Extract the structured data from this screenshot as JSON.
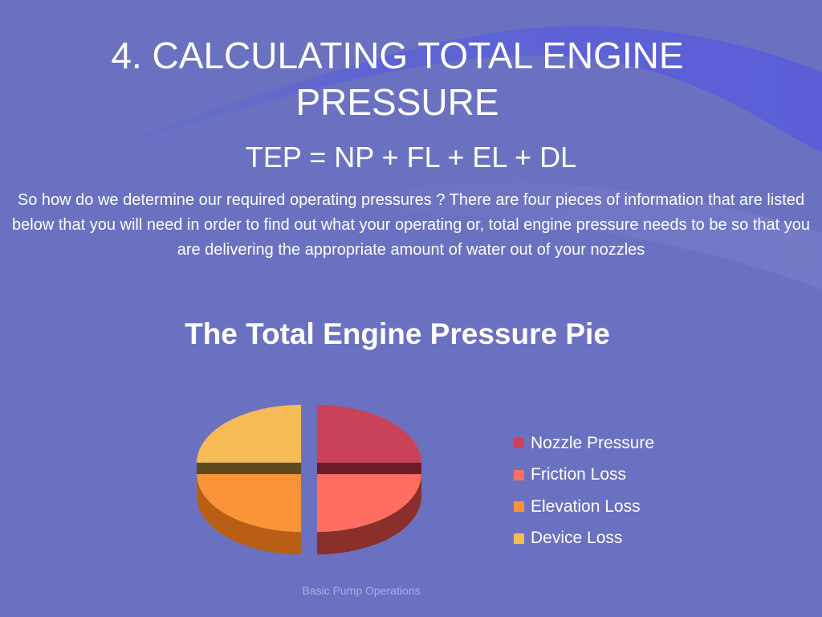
{
  "slide": {
    "title": "4. CALCULATING TOTAL ENGINE PRESSURE",
    "formula": "TEP = NP + FL + EL + DL",
    "intro": "So how do we determine our required operating pressures ? There are four pieces of information that are listed below that you will need in order to find out what your operating or, total engine pressure needs to be so that you are delivering the appropriate amount of water out of your nozzles",
    "footer": "Basic Pump Operations"
  },
  "colors": {
    "background": "#6a71c0",
    "wave": "#5a5fd8"
  },
  "chart_data": {
    "type": "pie",
    "title": "The Total Engine Pressure Pie",
    "legend_position": "right",
    "series": [
      {
        "name": "Nozzle Pressure",
        "value": 25,
        "color": "#c9425a",
        "side": "#6b1e28"
      },
      {
        "name": "Friction Loss",
        "value": 25,
        "color": "#ff6e61",
        "side": "#8a2f2a"
      },
      {
        "name": "Elevation Loss",
        "value": 25,
        "color": "#fa9438",
        "side": "#b85e15"
      },
      {
        "name": "Device Loss",
        "value": 25,
        "color": "#f6bb54",
        "side": "#5e4a1c"
      }
    ]
  }
}
